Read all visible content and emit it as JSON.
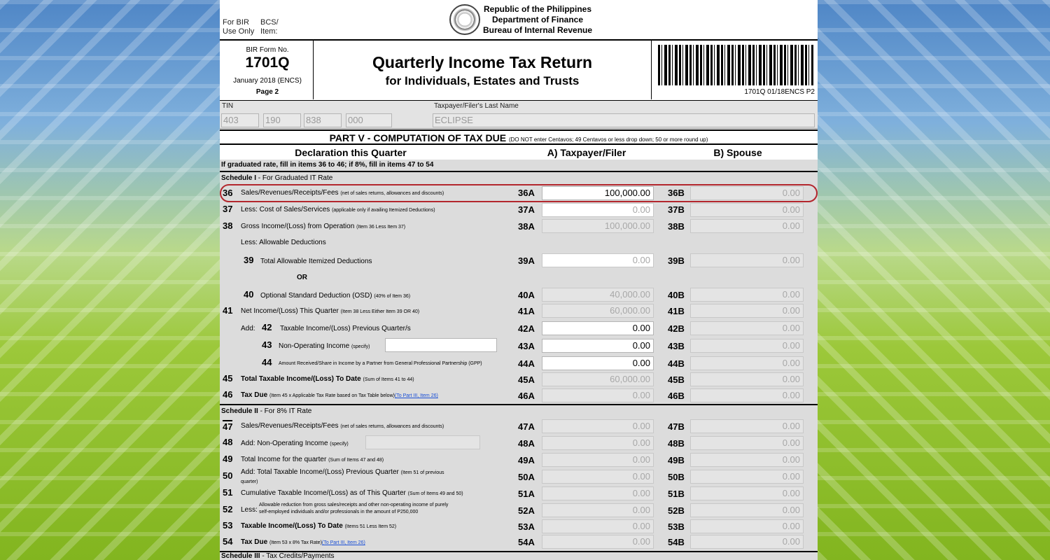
{
  "header": {
    "bir_use": [
      "For BIR",
      "Use Only"
    ],
    "bcs": [
      "BCS/",
      "Item:"
    ],
    "agency": [
      "Republic of the Philippines",
      "Department of Finance",
      "Bureau of Internal Revenue"
    ],
    "form_no_label": "BIR Form No.",
    "form_no": "1701Q",
    "form_date": "January 2018 (ENCS)",
    "page": "Page 2",
    "title": "Quarterly Income Tax Return",
    "subtitle": "for Individuals, Estates and Trusts",
    "barcode_text": "1701Q 01/18ENCS P2"
  },
  "tin": {
    "label": "TIN",
    "parts": [
      "403",
      "190",
      "838",
      "000"
    ],
    "lastname_label": "Taxpayer/Filer's Last Name",
    "lastname": "ECLIPSE"
  },
  "part5": {
    "title": "PART V - COMPUTATION OF TAX DUE",
    "note": "(DO NOT enter Centavos; 49 Centavos or less drop down; 50 or more round up)",
    "col_decl": "Declaration this Quarter",
    "col_a": "A) Taxpayer/Filer",
    "col_b": "B) Spouse",
    "info": "If graduated rate, fill in items 36 to 46; if 8%, fill in items 47 to 54",
    "sched1": {
      "bold": "Schedule I",
      "rest": " - For Graduated IT Rate"
    },
    "sched2": {
      "bold": "Schedule II",
      "rest": " - For 8% IT Rate"
    },
    "sched3": {
      "bold": "Schedule III",
      "rest": " - Tax Credits/Payments"
    },
    "less_allow": "Less: Allowable Deductions",
    "or": "OR",
    "add": "Add:",
    "rows": [
      {
        "num": "36",
        "label": "Sales/Revenues/Receipts/Fees",
        "note": "(net of sales returns, allowances and discounts)",
        "codeA": "36A",
        "valA": "100,000.00",
        "codeB": "36B",
        "valB": "0.00"
      },
      {
        "num": "37",
        "label": "Less: Cost of Sales/Services",
        "note": "(applicable only if availing Itemized Deductions)",
        "codeA": "37A",
        "valA": "0.00",
        "codeB": "37B",
        "valB": "0.00"
      },
      {
        "num": "38",
        "label": "Gross Income/(Loss) from Operation",
        "note": "(Item 36 Less Item 37)",
        "codeA": "38A",
        "valA": "100,000.00",
        "codeB": "38B",
        "valB": "0.00"
      },
      {
        "num": "39",
        "label": "Total Allowable Itemized Deductions",
        "note": "",
        "codeA": "39A",
        "valA": "0.00",
        "codeB": "39B",
        "valB": "0.00"
      },
      {
        "num": "40",
        "label": "Optional Standard Deduction (OSD)",
        "note": "(40% of Item 36)",
        "codeA": "40A",
        "valA": "40,000.00",
        "codeB": "40B",
        "valB": "0.00"
      },
      {
        "num": "41",
        "label": "Net Income/(Loss) This Quarter",
        "note": "(Item 38 Less Either Item 39 OR 40)",
        "codeA": "41A",
        "valA": "60,000.00",
        "codeB": "41B",
        "valB": "0.00"
      },
      {
        "num": "42",
        "label": "Taxable Income/(Loss) Previous Quarter/s",
        "note": "",
        "codeA": "42A",
        "valA": "0.00",
        "codeB": "42B",
        "valB": "0.00"
      },
      {
        "num": "43",
        "label": "Non-Operating Income",
        "note": "(specify)",
        "codeA": "43A",
        "valA": "0.00",
        "codeB": "43B",
        "valB": "0.00"
      },
      {
        "num": "44",
        "label": "Amount Received/Share in Income by a Partner from General Professional Partnership (GPP)",
        "note": "",
        "codeA": "44A",
        "valA": "0.00",
        "codeB": "44B",
        "valB": "0.00"
      },
      {
        "num": "45",
        "label": "Total Taxable Income/(Loss) To Date",
        "note": "(Sum of Items 41 to 44)",
        "codeA": "45A",
        "valA": "60,000.00",
        "codeB": "45B",
        "valB": "0.00"
      },
      {
        "num": "46",
        "label": "Tax Due",
        "note": "(Item 45 x Applicable Tax Rate based on Tax Table below)",
        "link": "(To Part III, Item 26)",
        "codeA": "46A",
        "valA": "0.00",
        "codeB": "46B",
        "valB": "0.00"
      },
      {
        "num": "47",
        "label": "Sales/Revenues/Receipts/Fees",
        "note": "(net of sales returns, allowances and discounts)",
        "codeA": "47A",
        "valA": "0.00",
        "codeB": "47B",
        "valB": "0.00"
      },
      {
        "num": "48",
        "label": "Add: Non-Operating Income",
        "note": "(specify)",
        "codeA": "48A",
        "valA": "0.00",
        "codeB": "48B",
        "valB": "0.00"
      },
      {
        "num": "49",
        "label": "Total Income for the quarter",
        "note": "(Sum of Items 47 and 48)",
        "codeA": "49A",
        "valA": "0.00",
        "codeB": "49B",
        "valB": "0.00"
      },
      {
        "num": "50",
        "label": "Add: Total Taxable Income/(Loss) Previous Quarter",
        "note": "(Item 51 of previous",
        "note2": "quarter)",
        "codeA": "50A",
        "valA": "0.00",
        "codeB": "50B",
        "valB": "0.00"
      },
      {
        "num": "51",
        "label": "Cumulative Taxable Income/(Loss) as of This Quarter",
        "note": "(Sum of Items 49 and 50)",
        "codeA": "51A",
        "valA": "0.00",
        "codeB": "51B",
        "valB": "0.00"
      },
      {
        "num": "52",
        "label": "Less:",
        "note": "Allowable reduction from gross sales/receipts and other non-operating income of purely",
        "note2": "self-employed individuals and/or professionals in the amount of P250,000",
        "codeA": "52A",
        "valA": "0.00",
        "codeB": "52B",
        "valB": "0.00"
      },
      {
        "num": "53",
        "label": "Taxable Income/(Loss) To Date",
        "note": "(Items 51 Less Item 52)",
        "codeA": "53A",
        "valA": "0.00",
        "codeB": "53B",
        "valB": "0.00"
      },
      {
        "num": "54",
        "label": "Tax Due",
        "note": "(Item 53 x 8% Tax Rate)",
        "link": "(To Part III, Item 26)",
        "codeA": "54A",
        "valA": "0.00",
        "codeB": "54B",
        "valB": "0.00"
      }
    ]
  }
}
